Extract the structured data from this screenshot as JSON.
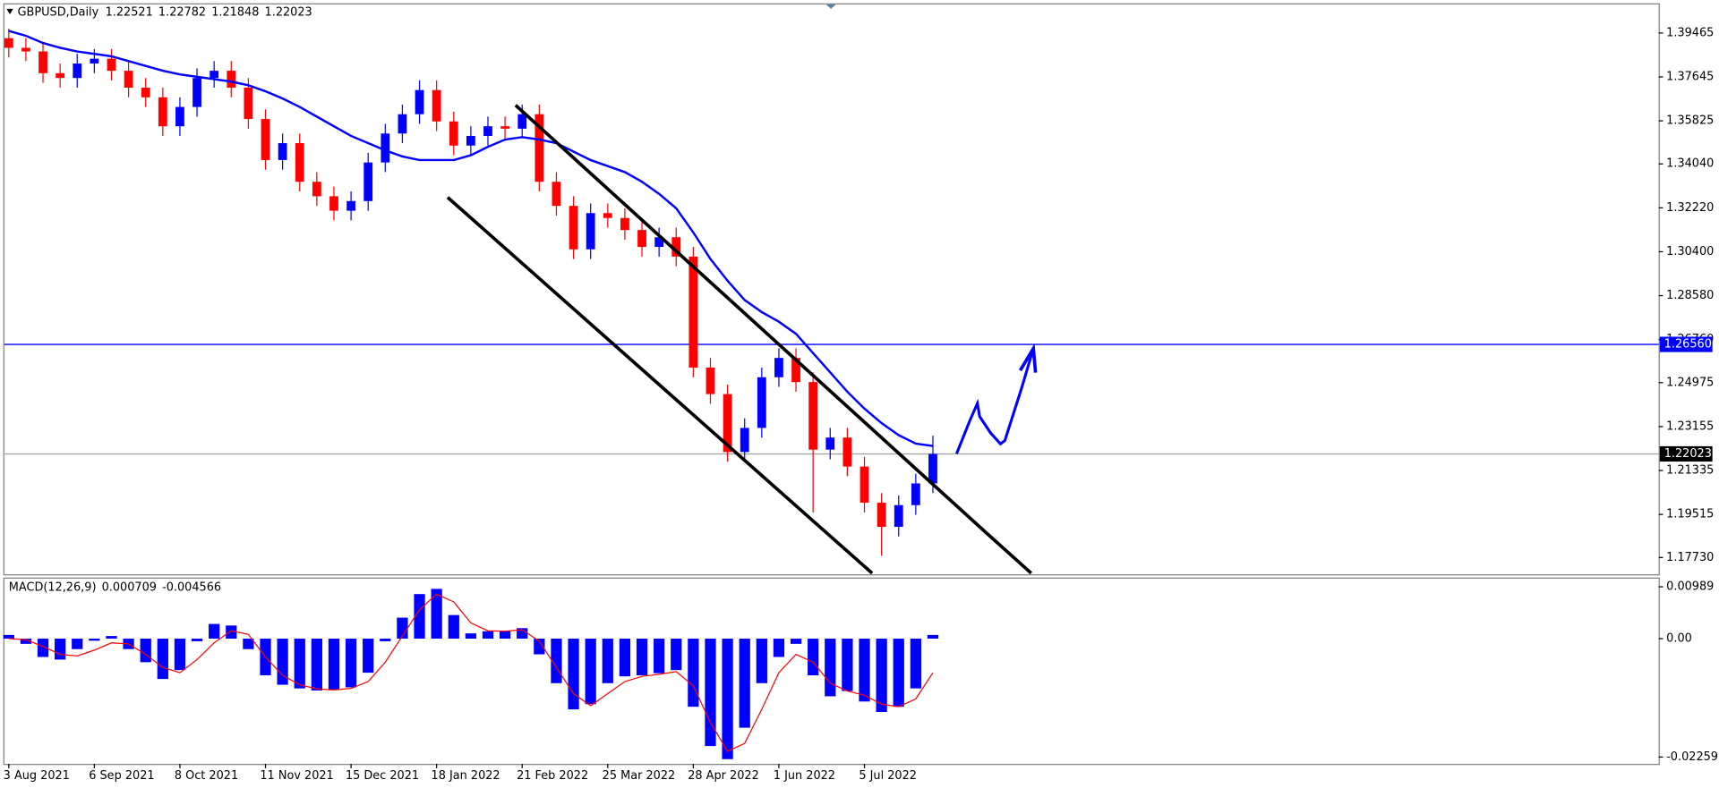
{
  "chart_data": {
    "type": "candlestick",
    "header": {
      "symbol": "GBPUSD,Daily",
      "ohlc": [
        1.22521,
        1.22782,
        1.21848,
        1.22023
      ]
    },
    "categories": [
      "3 Aug 2021",
      null,
      null,
      null,
      null,
      "6 Sep 2021",
      null,
      null,
      null,
      null,
      "8 Oct 2021",
      null,
      null,
      null,
      null,
      "11 Nov 2021",
      null,
      null,
      null,
      null,
      "15 Dec 2021",
      null,
      null,
      null,
      null,
      "18 Jan 2022",
      null,
      null,
      null,
      null,
      "21 Feb 2022",
      null,
      null,
      null,
      null,
      "25 Mar 2022",
      null,
      null,
      null,
      null,
      "28 Apr 2022",
      null,
      null,
      null,
      null,
      "1 Jun 2022",
      null,
      null,
      null,
      null,
      "5 Jul 2022",
      null,
      null,
      null,
      null
    ],
    "open": [
      1.3925,
      1.3885,
      1.387,
      1.378,
      1.376,
      1.382,
      1.384,
      1.379,
      1.372,
      1.368,
      1.356,
      1.364,
      1.376,
      1.379,
      1.372,
      1.359,
      1.342,
      1.349,
      1.333,
      1.327,
      1.321,
      1.325,
      1.341,
      1.353,
      1.361,
      1.371,
      1.358,
      1.348,
      1.352,
      1.356,
      1.355,
      1.361,
      1.333,
      1.323,
      1.305,
      1.32,
      1.318,
      1.313,
      1.306,
      1.31,
      1.302,
      1.256,
      1.245,
      1.221,
      1.231,
      1.252,
      1.26,
      1.25,
      1.222,
      1.227,
      1.215,
      1.2,
      1.19,
      1.199,
      1.208
    ],
    "high": [
      1.3965,
      1.3925,
      1.391,
      1.382,
      1.386,
      1.388,
      1.388,
      1.383,
      1.376,
      1.372,
      1.368,
      1.38,
      1.383,
      1.383,
      1.376,
      1.363,
      1.353,
      1.353,
      1.337,
      1.331,
      1.329,
      1.345,
      1.357,
      1.365,
      1.375,
      1.375,
      1.362,
      1.356,
      1.36,
      1.36,
      1.365,
      1.365,
      1.337,
      1.327,
      1.324,
      1.324,
      1.322,
      1.317,
      1.314,
      1.314,
      1.306,
      1.26,
      1.249,
      1.235,
      1.256,
      1.264,
      1.264,
      1.254,
      1.231,
      1.231,
      1.219,
      1.204,
      1.203,
      1.212,
      1.2278
    ],
    "low": [
      1.3845,
      1.383,
      1.374,
      1.372,
      1.372,
      1.378,
      1.375,
      1.368,
      1.364,
      1.352,
      1.352,
      1.36,
      1.372,
      1.368,
      1.355,
      1.338,
      1.338,
      1.329,
      1.323,
      1.317,
      1.317,
      1.321,
      1.337,
      1.349,
      1.357,
      1.354,
      1.344,
      1.344,
      1.348,
      1.351,
      1.351,
      1.329,
      1.319,
      1.301,
      1.301,
      1.314,
      1.309,
      1.302,
      1.302,
      1.298,
      1.252,
      1.241,
      1.217,
      1.217,
      1.227,
      1.248,
      1.246,
      1.196,
      1.218,
      1.211,
      1.196,
      1.178,
      1.186,
      1.195,
      1.204
    ],
    "close": [
      1.3885,
      1.387,
      1.378,
      1.376,
      1.382,
      1.384,
      1.379,
      1.372,
      1.368,
      1.356,
      1.364,
      1.376,
      1.379,
      1.372,
      1.359,
      1.342,
      1.349,
      1.333,
      1.327,
      1.321,
      1.325,
      1.341,
      1.353,
      1.361,
      1.371,
      1.358,
      1.348,
      1.352,
      1.356,
      1.355,
      1.361,
      1.333,
      1.323,
      1.305,
      1.32,
      1.318,
      1.313,
      1.306,
      1.31,
      1.302,
      1.256,
      1.245,
      1.221,
      1.231,
      1.252,
      1.26,
      1.25,
      1.222,
      1.227,
      1.215,
      1.2,
      1.19,
      1.199,
      1.208,
      1.2202
    ],
    "up_color": "#0000ff",
    "down_color": "#ff0000",
    "moving_average": {
      "color": "#0000ff",
      "values": [
        1.3955,
        1.3935,
        1.3905,
        1.3885,
        1.387,
        1.386,
        1.385,
        1.383,
        1.381,
        1.379,
        1.3775,
        1.3765,
        1.3755,
        1.3745,
        1.373,
        1.3705,
        1.3675,
        1.364,
        1.36,
        1.356,
        1.352,
        1.349,
        1.346,
        1.3435,
        1.342,
        1.342,
        1.342,
        1.344,
        1.3475,
        1.3505,
        1.3515,
        1.3505,
        1.349,
        1.3455,
        1.342,
        1.3395,
        1.337,
        1.333,
        1.328,
        1.322,
        1.312,
        1.301,
        1.292,
        1.284,
        1.279,
        1.275,
        1.27,
        1.262,
        1.254,
        1.246,
        1.239,
        1.233,
        1.228,
        1.2245,
        1.2235
      ]
    },
    "ylim": [
      1.1708,
      1.4065
    ],
    "yticks": [
      {
        "value": 1.39465,
        "label": "1.39465"
      },
      {
        "value": 1.37645,
        "label": "1.37645"
      },
      {
        "value": 1.35825,
        "label": "1.35825"
      },
      {
        "value": 1.3404,
        "label": "1.34040"
      },
      {
        "value": 1.3222,
        "label": "1.32220"
      },
      {
        "value": 1.304,
        "label": "1.30400"
      },
      {
        "value": 1.2858,
        "label": "1.28580"
      },
      {
        "value": 1.2676,
        "label": "1.26760"
      },
      {
        "value": 1.24975,
        "label": "1.24975"
      },
      {
        "value": 1.23155,
        "label": "1.23155"
      },
      {
        "value": 1.21335,
        "label": "1.21335"
      },
      {
        "value": 1.19515,
        "label": "1.19515"
      },
      {
        "value": 1.1773,
        "label": "1.17730"
      }
    ],
    "hline": {
      "value": 1.2656,
      "label": "1.26560",
      "color": "#0000ff"
    },
    "macd": {
      "title": "MACD(12,26,9)",
      "readings": [
        0.000709,
        -0.004566
      ],
      "hist_color": "#0000ff",
      "signal_color": "#ff0000",
      "histogram": [
        0.0007,
        -0.001,
        -0.0035,
        -0.004,
        -0.002,
        -0.0004,
        0.0005,
        -0.002,
        -0.0045,
        -0.0077,
        -0.006,
        -0.0005,
        0.0028,
        0.0025,
        -0.002,
        -0.007,
        -0.0088,
        -0.0095,
        -0.0099,
        -0.0097,
        -0.0093,
        -0.0065,
        -0.0005,
        0.004,
        0.0085,
        0.0095,
        0.0045,
        0.001,
        0.0014,
        0.0015,
        0.002,
        -0.003,
        -0.0085,
        -0.0135,
        -0.0125,
        -0.0085,
        -0.0072,
        -0.007,
        -0.0066,
        -0.006,
        -0.013,
        -0.0205,
        -0.023,
        -0.017,
        -0.0085,
        -0.0035,
        -0.001,
        -0.007,
        -0.011,
        -0.01,
        -0.012,
        -0.014,
        -0.013,
        -0.0095,
        0.0007
      ],
      "signal": [
        0.0,
        -0.0002,
        -0.0015,
        -0.003,
        -0.0033,
        -0.0022,
        -0.0008,
        -0.001,
        -0.003,
        -0.0055,
        -0.0065,
        -0.004,
        -0.0008,
        0.0015,
        0.0008,
        -0.0035,
        -0.007,
        -0.0088,
        -0.0096,
        -0.0098,
        -0.0095,
        -0.0082,
        -0.0045,
        0.0005,
        0.0055,
        0.0085,
        0.007,
        0.003,
        0.0015,
        0.0014,
        0.0017,
        -0.0005,
        -0.0055,
        -0.0105,
        -0.0128,
        -0.0105,
        -0.0082,
        -0.0072,
        -0.0068,
        -0.0063,
        -0.009,
        -0.016,
        -0.0215,
        -0.02,
        -0.0135,
        -0.0065,
        -0.003,
        -0.0045,
        -0.0085,
        -0.01,
        -0.0108,
        -0.0125,
        -0.013,
        -0.0115,
        -0.0065
      ],
      "ylim": [
        -0.0239,
        0.01165
      ],
      "yticks": [
        {
          "value": 0.00989,
          "label": "0.00989"
        },
        {
          "value": 0,
          "label": "0.00"
        },
        {
          "value": -0.02259,
          "label": "-0.02259"
        }
      ]
    }
  }
}
